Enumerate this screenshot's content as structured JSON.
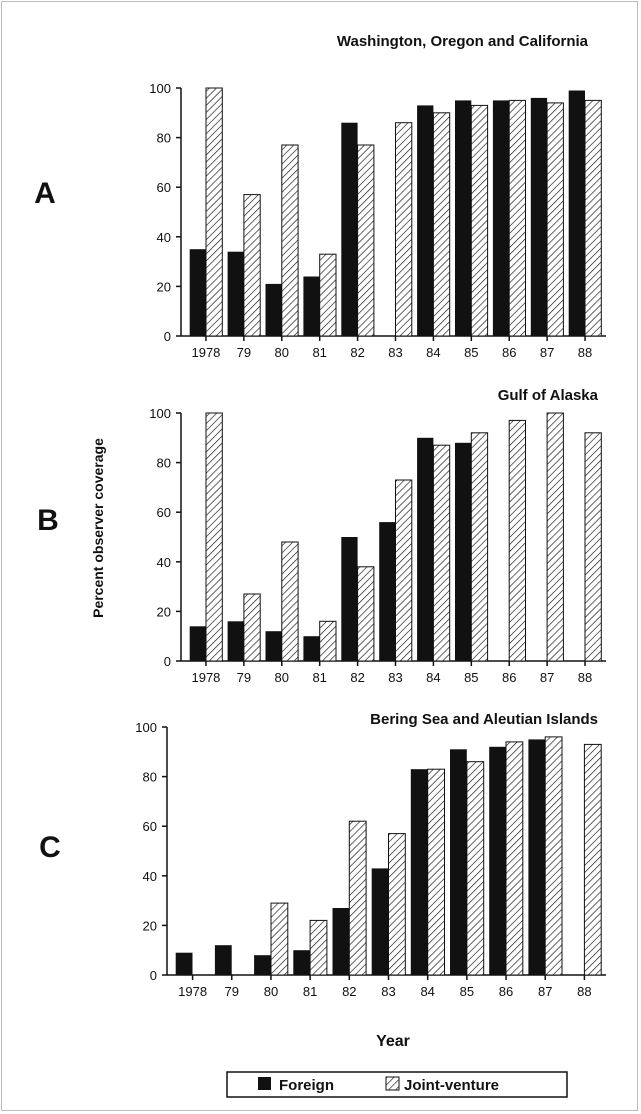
{
  "figure": {
    "ylabel": "Percent observer coverage",
    "xlabel": "Year",
    "legend": [
      {
        "label": "Foreign",
        "style": "solid"
      },
      {
        "label": "Joint-venture",
        "style": "hatched"
      }
    ],
    "colors": {
      "foreign": "#111111",
      "hatch": "#111111",
      "background": "#ffffff"
    }
  },
  "chart_data": [
    {
      "type": "bar",
      "panel": "A",
      "title": "Washington, Oregon and California",
      "categories": [
        "1978",
        "79",
        "80",
        "81",
        "82",
        "83",
        "84",
        "85",
        "86",
        "87",
        "88"
      ],
      "ylim": [
        0,
        100
      ],
      "yticks": [
        0,
        20,
        40,
        60,
        80,
        100
      ],
      "series": [
        {
          "name": "Foreign",
          "values": [
            35,
            34,
            21,
            24,
            86,
            0,
            93,
            95,
            95,
            96,
            99
          ]
        },
        {
          "name": "Joint-venture",
          "values": [
            100,
            57,
            77,
            33,
            77,
            86,
            90,
            93,
            95,
            94,
            95
          ]
        }
      ]
    },
    {
      "type": "bar",
      "panel": "B",
      "title": "Gulf of Alaska",
      "categories": [
        "1978",
        "79",
        "80",
        "81",
        "82",
        "83",
        "84",
        "85",
        "86",
        "87",
        "88"
      ],
      "ylim": [
        0,
        100
      ],
      "yticks": [
        0,
        20,
        40,
        60,
        80,
        100
      ],
      "series": [
        {
          "name": "Foreign",
          "values": [
            14,
            16,
            12,
            10,
            50,
            56,
            90,
            88,
            0,
            0,
            0
          ]
        },
        {
          "name": "Joint-venture",
          "values": [
            100,
            27,
            48,
            16,
            38,
            73,
            87,
            92,
            97,
            100,
            92
          ]
        }
      ]
    },
    {
      "type": "bar",
      "panel": "C",
      "title": "Bering Sea and Aleutian Islands",
      "categories": [
        "1978",
        "79",
        "80",
        "81",
        "82",
        "83",
        "84",
        "85",
        "86",
        "87",
        "88"
      ],
      "ylim": [
        0,
        100
      ],
      "yticks": [
        0,
        20,
        40,
        60,
        80,
        100
      ],
      "series": [
        {
          "name": "Foreign",
          "values": [
            9,
            12,
            8,
            10,
            27,
            43,
            83,
            91,
            92,
            95,
            0
          ]
        },
        {
          "name": "Joint-venture",
          "values": [
            0,
            0,
            29,
            22,
            62,
            57,
            83,
            86,
            94,
            96,
            93
          ]
        }
      ]
    }
  ]
}
